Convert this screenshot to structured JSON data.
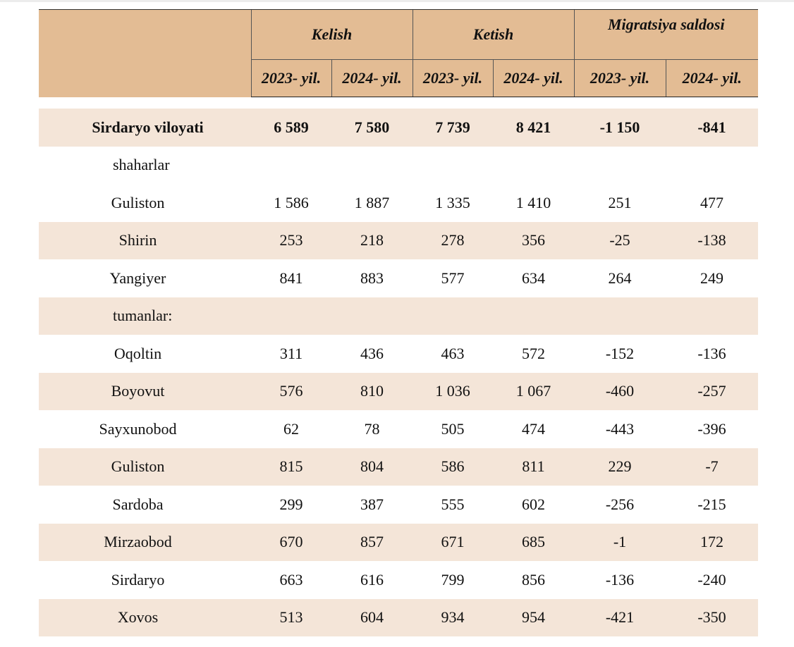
{
  "header": {
    "groups": [
      "Kelish",
      "Ketish",
      "Migratsiya saldosi"
    ],
    "years": [
      "2023- yil.",
      "2024- yil.",
      "2023- yil.",
      "2024- yil.",
      "2023- yil.",
      "2024- yil."
    ]
  },
  "rows": [
    {
      "name": "Sirdaryo viloyati",
      "values": [
        "6 589",
        "7 580",
        "7 739",
        "8 421",
        "-1 150",
        "-841"
      ]
    },
    {
      "name": "shaharlar",
      "values": []
    },
    {
      "name": "Guliston",
      "values": [
        "1 586",
        "1 887",
        "1 335",
        "1 410",
        "251",
        "477"
      ]
    },
    {
      "name": "Shirin",
      "values": [
        "253",
        "218",
        "278",
        "356",
        "-25",
        "-138"
      ]
    },
    {
      "name": "Yangiyer",
      "values": [
        "841",
        "883",
        "577",
        "634",
        "264",
        "249"
      ]
    },
    {
      "name": "tumanlar:",
      "values": []
    },
    {
      "name": "Oqoltin",
      "values": [
        "311",
        "436",
        "463",
        "572",
        "-152",
        "-136"
      ]
    },
    {
      "name": "Boyovut",
      "values": [
        "576",
        "810",
        "1 036",
        "1 067",
        "-460",
        "-257"
      ]
    },
    {
      "name": "Sayxunobod",
      "values": [
        "62",
        "78",
        "505",
        "474",
        "-443",
        "-396"
      ]
    },
    {
      "name": "Guliston",
      "values": [
        "815",
        "804",
        "586",
        "811",
        "229",
        "-7"
      ]
    },
    {
      "name": "Sardoba",
      "values": [
        "299",
        "387",
        "555",
        "602",
        "-256",
        "-215"
      ]
    },
    {
      "name": "Mirzaobod",
      "values": [
        "670",
        "857",
        "671",
        "685",
        "-1",
        "172"
      ]
    },
    {
      "name": "Sirdaryo",
      "values": [
        "663",
        "616",
        "799",
        "856",
        "-136",
        "-240"
      ]
    },
    {
      "name": "Xovos",
      "values": [
        "513",
        "604",
        "934",
        "954",
        "-421",
        "-350"
      ]
    }
  ]
}
